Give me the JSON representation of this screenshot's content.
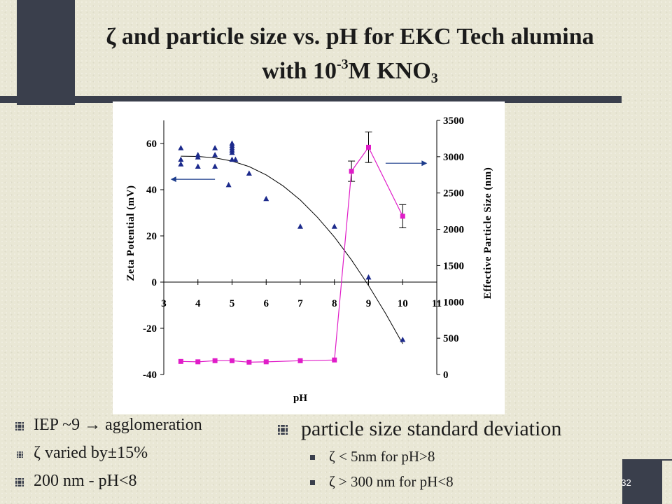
{
  "slide": {
    "title_zeta": "ζ",
    "title_line1": " and particle size vs. pH for EKC Tech alumina",
    "title_line2_pre": "with 10",
    "title_line2_sup": "-3",
    "title_line2_mid": "M KNO",
    "title_line2_sub": "3",
    "page_number": "32"
  },
  "bullets_left": [
    {
      "text": "IEP ~9 → agglomeration"
    },
    {
      "text": "ζ varied by±15%"
    },
    {
      "text": "200 nm - pH<8"
    }
  ],
  "bullets_right": {
    "heading": "particle size standard deviation",
    "items": [
      {
        "text": "ζ < 5nm for pH>8"
      },
      {
        "text": "ζ > 300 nm for pH<8"
      }
    ]
  },
  "colors": {
    "dark_block": "#3a3f4c",
    "zeta_marker": "#1c2a8c",
    "size_marker": "#e01cc8",
    "fit_line": "#000000"
  },
  "chart_data": {
    "type": "scatter",
    "xlabel": "pH",
    "ylabel_left": "Zeta Potential (mV)",
    "ylabel_right": "Effective Particle Size (nm)",
    "xlim": [
      3,
      11
    ],
    "xticks": [
      3,
      4,
      5,
      6,
      7,
      8,
      9,
      10,
      11
    ],
    "ylim_left": [
      -40,
      70
    ],
    "yticks_left": [
      -40,
      -20,
      0,
      20,
      40,
      60
    ],
    "ylim_right": [
      0,
      3500
    ],
    "yticks_right": [
      0,
      500,
      1000,
      1500,
      2000,
      2500,
      3000,
      3500
    ],
    "series": [
      {
        "axis": "left",
        "marker": "triangle",
        "x": [
          3.5,
          3.5,
          3.5,
          4,
          4,
          4,
          4.5,
          4.5,
          4.5,
          4.9,
          5,
          5,
          5,
          5,
          5,
          5,
          5.1,
          5.5,
          6,
          7,
          8,
          9,
          10
        ],
        "y": [
          58,
          53,
          51,
          55,
          54,
          50,
          58,
          55,
          50,
          42,
          60,
          59,
          57,
          56,
          53,
          58,
          53,
          47,
          36,
          24,
          24,
          2,
          -25
        ]
      },
      {
        "axis": "right",
        "marker": "square",
        "x": [
          3.5,
          4,
          4.5,
          5,
          5.5,
          6,
          7,
          8,
          8.5,
          9,
          10
        ],
        "y": [
          180,
          175,
          190,
          190,
          170,
          175,
          190,
          200,
          2800,
          3130,
          2180
        ],
        "yerr": [
          0,
          0,
          0,
          0,
          0,
          0,
          0,
          0,
          140,
          210,
          160
        ]
      },
      {
        "axis": "left",
        "type": "line",
        "x": [
          3.5,
          4,
          4.5,
          5,
          5.5,
          6,
          6.5,
          7,
          7.5,
          8,
          8.5,
          9,
          9.5,
          10
        ],
        "y": [
          54.5,
          54.4,
          53.8,
          52.4,
          50.0,
          46.4,
          41.6,
          35.5,
          28.1,
          19.5,
          9.6,
          -1.5,
          -13.6,
          -26.7
        ]
      }
    ],
    "annotations": [
      "arrow pointing to left axis",
      "arrow pointing to right axis"
    ]
  }
}
